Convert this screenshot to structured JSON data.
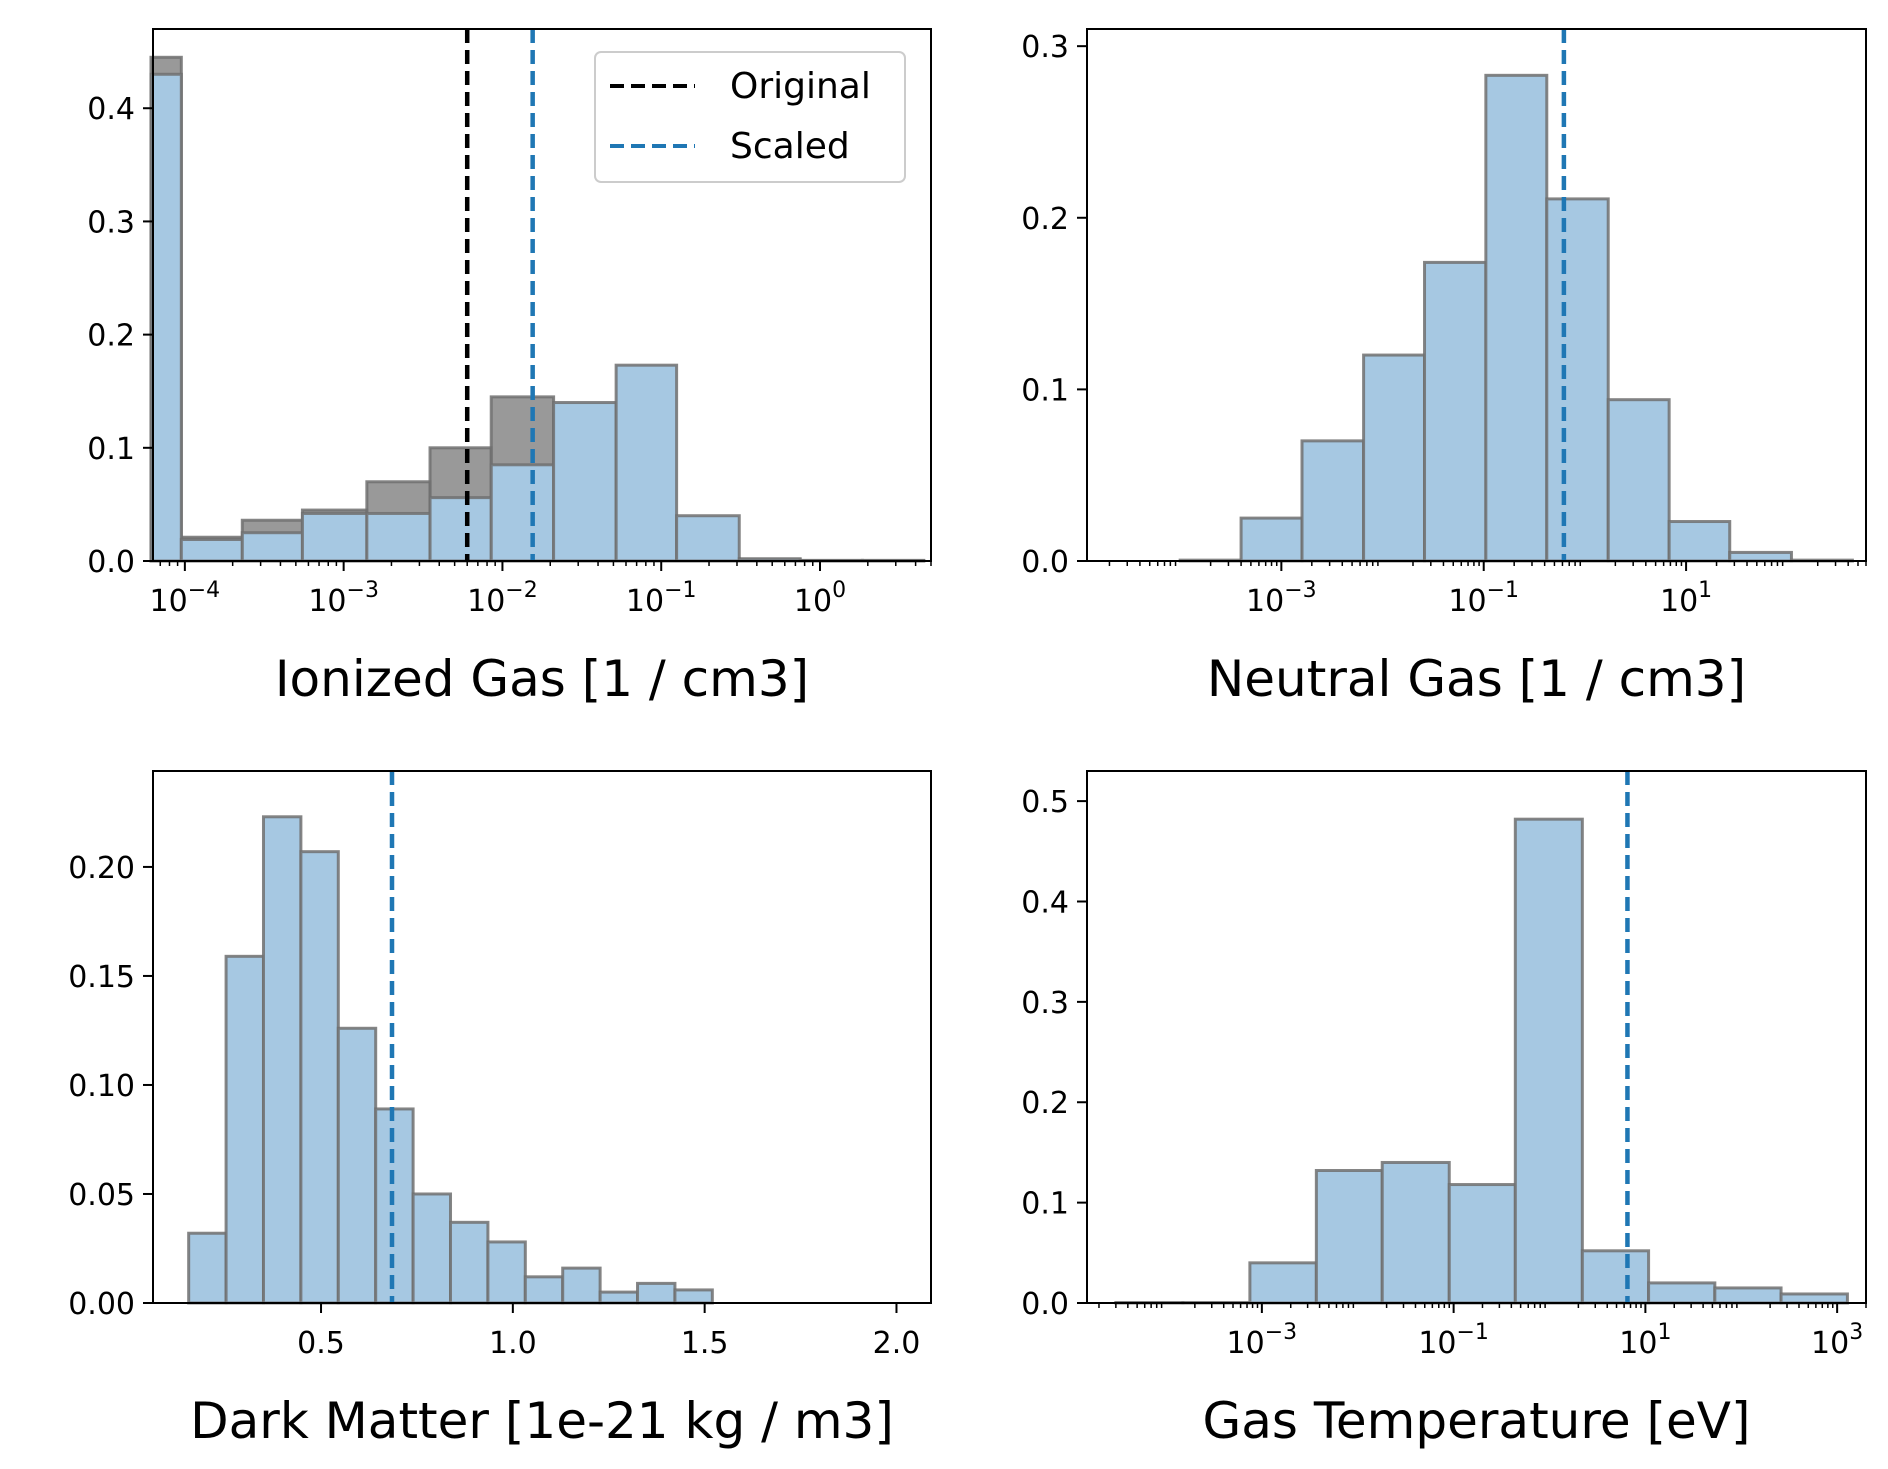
{
  "colors": {
    "scaled_fill": "#a6c8e2",
    "original_fill": "#808080",
    "edge": "#707070",
    "scaled_line": "#1f77b4",
    "original_line": "#000000"
  },
  "legend": {
    "placement": "top-right of first panel",
    "entries": [
      {
        "label": "Original",
        "color": "#000000",
        "style": "dashed"
      },
      {
        "label": "Scaled",
        "color": "#1f77b4",
        "style": "dashed"
      }
    ]
  },
  "chart_data": [
    {
      "type": "bar",
      "title": "",
      "xlabel": "Ionized Gas [1 / cm3]",
      "ylabel": "",
      "xscale": "log",
      "xlim": [
        6.3e-05,
        5
      ],
      "ylim": [
        0,
        0.47
      ],
      "grid": false,
      "xtick_values": [
        0.0001,
        0.001,
        0.01,
        0.1,
        1
      ],
      "xtick_exponents": [
        "−4",
        "−3",
        "−2",
        "−1",
        "0"
      ],
      "ytick_values": [
        0.0,
        0.1,
        0.2,
        0.3,
        0.4
      ],
      "ytick_labels": [
        "0.0",
        "0.1",
        "0.2",
        "0.3",
        "0.4"
      ],
      "series": [
        {
          "name": "Original",
          "bins": [
            {
              "x0": 6e-05,
              "x1": 9.5e-05,
              "value": 0.445
            },
            {
              "x0": 9.5e-05,
              "x1": 0.00023,
              "value": 0.021
            },
            {
              "x0": 0.00023,
              "x1": 0.00055,
              "value": 0.036
            },
            {
              "x0": 0.00055,
              "x1": 0.0014,
              "value": 0.045
            },
            {
              "x0": 0.0014,
              "x1": 0.0035,
              "value": 0.07
            },
            {
              "x0": 0.0035,
              "x1": 0.0085,
              "value": 0.1
            },
            {
              "x0": 0.0085,
              "x1": 0.021,
              "value": 0.145
            },
            {
              "x0": 0.021,
              "x1": 0.052,
              "value": 0.13
            },
            {
              "x0": 0.052,
              "x1": 0.125,
              "value": 0.011
            },
            {
              "x0": 0.125,
              "x1": 0.31,
              "value": 0.002
            },
            {
              "x0": 0.31,
              "x1": 0.75,
              "value": 0.001
            },
            {
              "x0": 0.75,
              "x1": 1.85,
              "value": 0.0005
            },
            {
              "x0": 1.85,
              "x1": 4.5,
              "value": 0.0005
            }
          ]
        },
        {
          "name": "Scaled",
          "bins": [
            {
              "x0": 6e-05,
              "x1": 9.5e-05,
              "value": 0.43
            },
            {
              "x0": 9.5e-05,
              "x1": 0.00023,
              "value": 0.019
            },
            {
              "x0": 0.00023,
              "x1": 0.00055,
              "value": 0.025
            },
            {
              "x0": 0.00055,
              "x1": 0.0014,
              "value": 0.042
            },
            {
              "x0": 0.0014,
              "x1": 0.0035,
              "value": 0.042
            },
            {
              "x0": 0.0035,
              "x1": 0.0085,
              "value": 0.056
            },
            {
              "x0": 0.0085,
              "x1": 0.021,
              "value": 0.085
            },
            {
              "x0": 0.021,
              "x1": 0.052,
              "value": 0.14
            },
            {
              "x0": 0.052,
              "x1": 0.125,
              "value": 0.173
            },
            {
              "x0": 0.125,
              "x1": 0.31,
              "value": 0.04
            },
            {
              "x0": 0.31,
              "x1": 0.75,
              "value": 0.002
            },
            {
              "x0": 0.75,
              "x1": 1.85,
              "value": 0.0005
            },
            {
              "x0": 1.85,
              "x1": 4.5,
              "value": 0.0005
            }
          ]
        }
      ],
      "vlines": [
        {
          "name": "Original",
          "x": 0.006
        },
        {
          "name": "Scaled",
          "x": 0.0155
        }
      ]
    },
    {
      "type": "bar",
      "title": "",
      "xlabel": "Neutral Gas [1 / cm3]",
      "ylabel": "",
      "xscale": "log",
      "xlim": [
        1.2e-05,
        600
      ],
      "ylim": [
        0,
        0.31
      ],
      "grid": false,
      "xtick_values": [
        0.001,
        0.1,
        10
      ],
      "xtick_exponents": [
        "−3",
        "−1",
        "1"
      ],
      "ytick_values": [
        0.0,
        0.1,
        0.2,
        0.3
      ],
      "ytick_labels": [
        "0.0",
        "0.1",
        "0.2",
        "0.3"
      ],
      "series": [
        {
          "name": "Scaled",
          "bins": [
            {
              "x0": 0.0001,
              "x1": 0.0004,
              "value": 0.0005
            },
            {
              "x0": 0.0004,
              "x1": 0.0016,
              "value": 0.025
            },
            {
              "x0": 0.0016,
              "x1": 0.0065,
              "value": 0.07
            },
            {
              "x0": 0.0065,
              "x1": 0.026,
              "value": 0.12
            },
            {
              "x0": 0.026,
              "x1": 0.105,
              "value": 0.174
            },
            {
              "x0": 0.105,
              "x1": 0.42,
              "value": 0.283
            },
            {
              "x0": 0.42,
              "x1": 1.7,
              "value": 0.211
            },
            {
              "x0": 1.7,
              "x1": 6.8,
              "value": 0.094
            },
            {
              "x0": 6.8,
              "x1": 27,
              "value": 0.023
            },
            {
              "x0": 27,
              "x1": 110,
              "value": 0.005
            },
            {
              "x0": 110,
              "x1": 440,
              "value": 0.0005
            }
          ]
        }
      ],
      "vlines": [
        {
          "name": "Scaled",
          "x": 0.62
        }
      ]
    },
    {
      "type": "bar",
      "title": "",
      "xlabel": "Dark Matter [1e-21 kg / m3]",
      "ylabel": "",
      "xscale": "linear",
      "xlim": [
        0.062,
        2.09
      ],
      "ylim": [
        0,
        0.244
      ],
      "grid": false,
      "xtick_values": [
        0.5,
        1.0,
        1.5,
        2.0
      ],
      "xtick_labels": [
        "0.5",
        "1.0",
        "1.5",
        "2.0"
      ],
      "ytick_values": [
        0.0,
        0.05,
        0.1,
        0.15,
        0.2
      ],
      "ytick_labels": [
        "0.00",
        "0.05",
        "0.10",
        "0.15",
        "0.20"
      ],
      "series": [
        {
          "name": "Scaled",
          "bins": [
            {
              "x0": 0.155,
              "x1": 0.2525,
              "value": 0.032
            },
            {
              "x0": 0.2525,
              "x1": 0.35,
              "value": 0.159
            },
            {
              "x0": 0.35,
              "x1": 0.4475,
              "value": 0.223
            },
            {
              "x0": 0.4475,
              "x1": 0.545,
              "value": 0.207
            },
            {
              "x0": 0.545,
              "x1": 0.6425,
              "value": 0.126
            },
            {
              "x0": 0.6425,
              "x1": 0.74,
              "value": 0.089
            },
            {
              "x0": 0.74,
              "x1": 0.8375,
              "value": 0.05
            },
            {
              "x0": 0.8375,
              "x1": 0.935,
              "value": 0.037
            },
            {
              "x0": 0.935,
              "x1": 1.0325,
              "value": 0.028
            },
            {
              "x0": 1.0325,
              "x1": 1.13,
              "value": 0.012
            },
            {
              "x0": 1.13,
              "x1": 1.2275,
              "value": 0.016
            },
            {
              "x0": 1.2275,
              "x1": 1.325,
              "value": 0.005
            },
            {
              "x0": 1.325,
              "x1": 1.4225,
              "value": 0.009
            },
            {
              "x0": 1.4225,
              "x1": 1.52,
              "value": 0.006
            }
          ]
        }
      ],
      "vlines": [
        {
          "name": "Scaled",
          "x": 0.685
        }
      ]
    },
    {
      "type": "bar",
      "title": "",
      "xlabel": "Gas Temperature [eV]",
      "ylabel": "",
      "xscale": "log",
      "xlim": [
        1.5e-05,
        2000
      ],
      "ylim": [
        0,
        0.53
      ],
      "grid": false,
      "xtick_values": [
        0.001,
        0.1,
        10,
        1000
      ],
      "xtick_exponents": [
        "−3",
        "−1",
        "1",
        "3"
      ],
      "ytick_values": [
        0.0,
        0.1,
        0.2,
        0.3,
        0.4,
        0.5
      ],
      "ytick_labels": [
        "0.0",
        "0.1",
        "0.2",
        "0.3",
        "0.4",
        "0.5"
      ],
      "series": [
        {
          "name": "Scaled",
          "bins": [
            {
              "x0": 3e-05,
              "x1": 0.00015,
              "value": 0.0005
            },
            {
              "x0": 0.00015,
              "x1": 0.00075,
              "value": 0.0005
            },
            {
              "x0": 0.00075,
              "x1": 0.0037,
              "value": 0.04
            },
            {
              "x0": 0.0037,
              "x1": 0.018,
              "value": 0.132
            },
            {
              "x0": 0.018,
              "x1": 0.09,
              "value": 0.14
            },
            {
              "x0": 0.09,
              "x1": 0.44,
              "value": 0.118
            },
            {
              "x0": 0.44,
              "x1": 2.2,
              "value": 0.482
            },
            {
              "x0": 2.2,
              "x1": 10.8,
              "value": 0.052
            },
            {
              "x0": 10.8,
              "x1": 53,
              "value": 0.02
            },
            {
              "x0": 53,
              "x1": 260,
              "value": 0.015
            },
            {
              "x0": 260,
              "x1": 1280,
              "value": 0.009
            }
          ]
        }
      ],
      "vlines": [
        {
          "name": "Scaled",
          "x": 6.5
        }
      ]
    }
  ]
}
